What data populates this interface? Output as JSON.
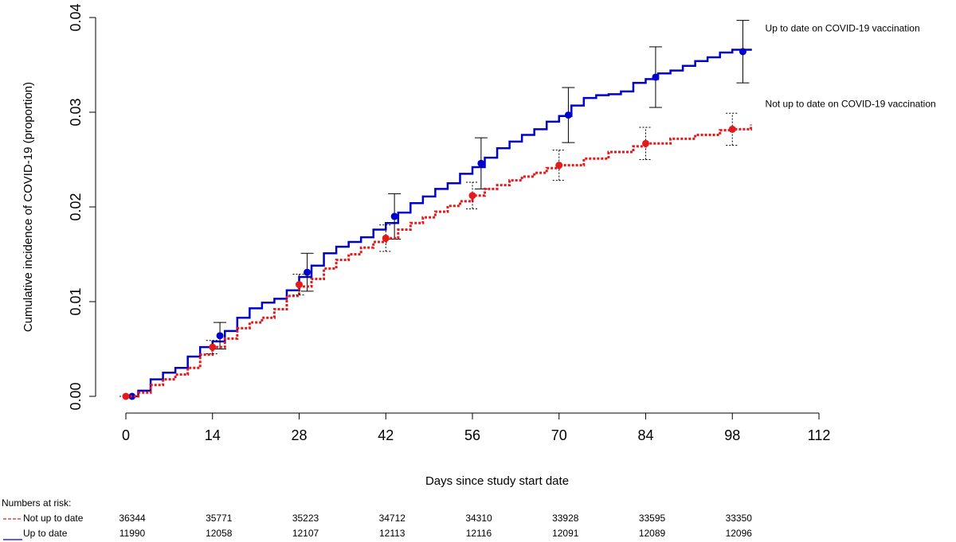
{
  "chart_data": {
    "type": "step",
    "y_label": "Cumulative incidence of COVID-19 (proportion)",
    "x_label": "Days since study start date",
    "xlim": [
      0,
      112
    ],
    "xticks": [
      0,
      14,
      28,
      42,
      56,
      70,
      84,
      98,
      112
    ],
    "ylim": [
      0,
      0.04
    ],
    "yticks": [
      {
        "value": 0,
        "label": "0.00"
      },
      0.01,
      0.02,
      0.03,
      0.04
    ],
    "series": [
      {
        "name": "Up to date on COVID-19 vaccination",
        "color": "#0000cc",
        "line_style": "solid",
        "x": [
          1,
          2,
          4,
          6,
          8,
          10,
          12,
          14,
          16,
          18,
          20,
          22,
          24,
          26,
          28,
          30,
          32,
          34,
          36,
          38,
          40,
          42,
          44,
          46,
          48,
          50,
          52,
          54,
          56,
          58,
          60,
          62,
          64,
          66,
          68,
          70,
          72,
          74,
          76,
          78,
          80,
          82,
          84,
          86,
          88,
          90,
          92,
          94,
          96,
          98,
          101
        ],
        "values": [
          0,
          0.0006,
          0.0018,
          0.0025,
          0.003,
          0.0042,
          0.0052,
          0.0058,
          0.0069,
          0.0083,
          0.0093,
          0.0099,
          0.0103,
          0.0112,
          0.0126,
          0.0138,
          0.0151,
          0.0158,
          0.0163,
          0.0168,
          0.0176,
          0.0183,
          0.0194,
          0.0204,
          0.0211,
          0.0219,
          0.0225,
          0.0235,
          0.0242,
          0.0252,
          0.0262,
          0.0269,
          0.0276,
          0.0282,
          0.029,
          0.0296,
          0.0307,
          0.0315,
          0.0318,
          0.0319,
          0.0322,
          0.0331,
          0.0335,
          0.0341,
          0.0344,
          0.0349,
          0.0354,
          0.0358,
          0.0363,
          0.0366,
          0.0367
        ],
        "estimates": {
          "x": [
            1,
            15.2,
            29.3,
            43.4,
            57.4,
            71.5,
            85.6,
            99.7
          ],
          "values": [
            0,
            0.0064,
            0.0131,
            0.019,
            0.0246,
            0.0297,
            0.0337,
            0.0364
          ],
          "errors": [
            0,
            0.0014,
            0.002,
            0.0024,
            0.0027,
            0.0029,
            0.0032,
            0.0033
          ]
        }
      },
      {
        "name": "Not up to date on COVID-19 vaccination",
        "color": "#e31a1c",
        "line_style": "dotted",
        "x": [
          0,
          2,
          4,
          6,
          8,
          10,
          12,
          14,
          16,
          18,
          20,
          22,
          24,
          26,
          28,
          30,
          32,
          34,
          36,
          38,
          40,
          42,
          44,
          46,
          48,
          50,
          52,
          54,
          56,
          58,
          60,
          62,
          64,
          66,
          68,
          70,
          74,
          78,
          82,
          84,
          88,
          92,
          96,
          98,
          101
        ],
        "values": [
          0,
          0.0004,
          0.0012,
          0.0018,
          0.0023,
          0.003,
          0.0044,
          0.0052,
          0.0061,
          0.0072,
          0.0078,
          0.0083,
          0.0092,
          0.0106,
          0.0116,
          0.0124,
          0.0135,
          0.0144,
          0.015,
          0.0157,
          0.0163,
          0.0167,
          0.0176,
          0.0183,
          0.0189,
          0.0195,
          0.0201,
          0.0206,
          0.0212,
          0.0219,
          0.0223,
          0.0228,
          0.0232,
          0.0236,
          0.0241,
          0.0244,
          0.0251,
          0.0258,
          0.0264,
          0.0267,
          0.0272,
          0.0276,
          0.0281,
          0.0282,
          0.0287
        ],
        "estimates": {
          "x": [
            0,
            14,
            28,
            42,
            56,
            70,
            84,
            98
          ],
          "values": [
            0,
            0.0052,
            0.0118,
            0.0167,
            0.0212,
            0.0244,
            0.0267,
            0.0282
          ],
          "errors": [
            0,
            0.0007,
            0.0011,
            0.0014,
            0.0014,
            0.0016,
            0.0017,
            0.0017
          ]
        }
      }
    ],
    "risk_table": {
      "title": "Numbers at risk:",
      "x": [
        0,
        14,
        28,
        42,
        56,
        70,
        84,
        98
      ],
      "rows": [
        {
          "label": "Not up to date",
          "series": 1,
          "values": [
            36344,
            35771,
            35223,
            34712,
            34310,
            33928,
            33595,
            33350
          ]
        },
        {
          "label": "Up to date",
          "series": 0,
          "values": [
            11990,
            12058,
            12107,
            12113,
            12116,
            12091,
            12089,
            12096
          ]
        }
      ]
    }
  }
}
